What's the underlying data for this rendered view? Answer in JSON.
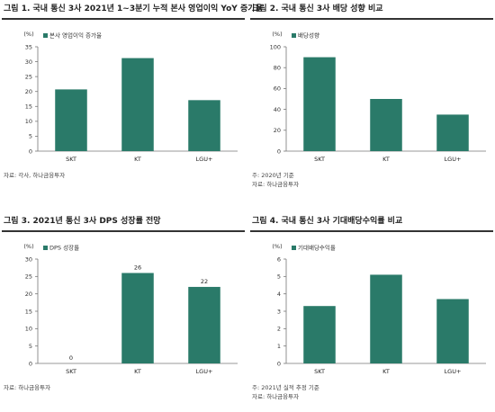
{
  "accent": "#2a7a69",
  "chart_data": [
    {
      "type": "bar",
      "title": "그림 1. 국내 통신 3사 2021년 1~3분기 누적 본사 영업이익 YoY 증가율",
      "unit": "(%)",
      "categories": [
        "SKT",
        "KT",
        "LGU+"
      ],
      "series": [
        {
          "name": "본사 영업이익 증가율",
          "values": [
            20.7,
            31.2,
            17.1
          ]
        }
      ],
      "ylim": [
        0,
        35
      ],
      "yticks": [
        "0",
        "5",
        "10",
        "15",
        "20",
        "25",
        "30",
        "35"
      ],
      "legend": "top-left",
      "grid": false,
      "notes": [
        "자료: 각사, 하나금융투자"
      ]
    },
    {
      "type": "bar",
      "title": "그림 2. 국내 통신 3사 배당 성향 비교",
      "unit": "(%)",
      "categories": [
        "SKT",
        "KT",
        "LGU+"
      ],
      "series": [
        {
          "name": "배당성향",
          "values": [
            90,
            50,
            35
          ]
        }
      ],
      "ylim": [
        0,
        100
      ],
      "yticks": [
        "0",
        "20",
        "40",
        "60",
        "80",
        "100"
      ],
      "legend": "top-left",
      "grid": false,
      "notes": [
        "주: 2020년 기준",
        "자료: 하나금융투자"
      ]
    },
    {
      "type": "bar",
      "title": "그림 3. 2021년 통신 3사 DPS 성장률 전망",
      "unit": "(%)",
      "categories": [
        "SKT",
        "KT",
        "LGU+"
      ],
      "series": [
        {
          "name": "DPS 성장률",
          "values": [
            0,
            26,
            22
          ],
          "labels": [
            "0",
            "26",
            "22"
          ]
        }
      ],
      "ylim": [
        0,
        30
      ],
      "yticks": [
        "0",
        "5",
        "10",
        "15",
        "20",
        "25",
        "30"
      ],
      "legend": "top-left",
      "grid": false,
      "notes": [
        "자료: 하나금융투자"
      ]
    },
    {
      "type": "bar",
      "title": "그림 4. 국내 통신 3사 기대배당수익률 비교",
      "unit": "(%)",
      "categories": [
        "SKT",
        "KT",
        "LGU+"
      ],
      "series": [
        {
          "name": "기대배당수익률",
          "values": [
            3.3,
            5.1,
            3.7
          ]
        }
      ],
      "ylim": [
        0,
        6
      ],
      "yticks": [
        "0",
        "1",
        "2",
        "3",
        "4",
        "5",
        "6"
      ],
      "legend": "top-left",
      "grid": false,
      "notes": [
        "주: 2021년 실적 추정 기준",
        "자료: 하나금융투자"
      ]
    }
  ]
}
